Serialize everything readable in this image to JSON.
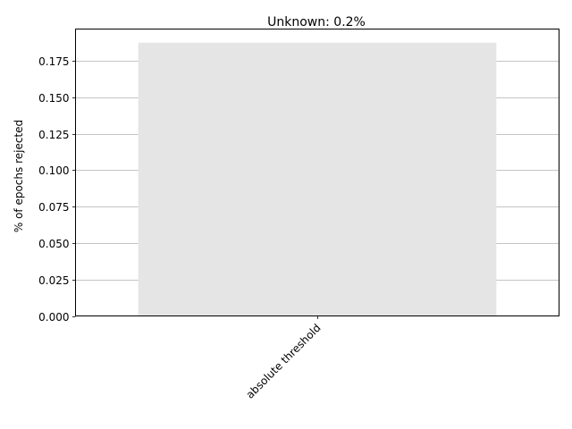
{
  "chart_data": {
    "type": "bar",
    "title": "Unknown: 0.2%",
    "xlabel": "",
    "ylabel": "% of epochs rejected",
    "categories": [
      "absolute threshold"
    ],
    "values": [
      0.1875
    ],
    "ylim": [
      0,
      0.196875
    ],
    "yticks": [
      0.0,
      0.025,
      0.05,
      0.075,
      0.1,
      0.125,
      0.15,
      0.175
    ],
    "ytick_labels": [
      "0.000",
      "0.025",
      "0.050",
      "0.075",
      "0.100",
      "0.125",
      "0.150",
      "0.175"
    ],
    "grid": "y",
    "legend": "none",
    "colors": {
      "bar": "#e5e5e5",
      "grid": "#b0b0b0",
      "axis": "#000000"
    }
  }
}
